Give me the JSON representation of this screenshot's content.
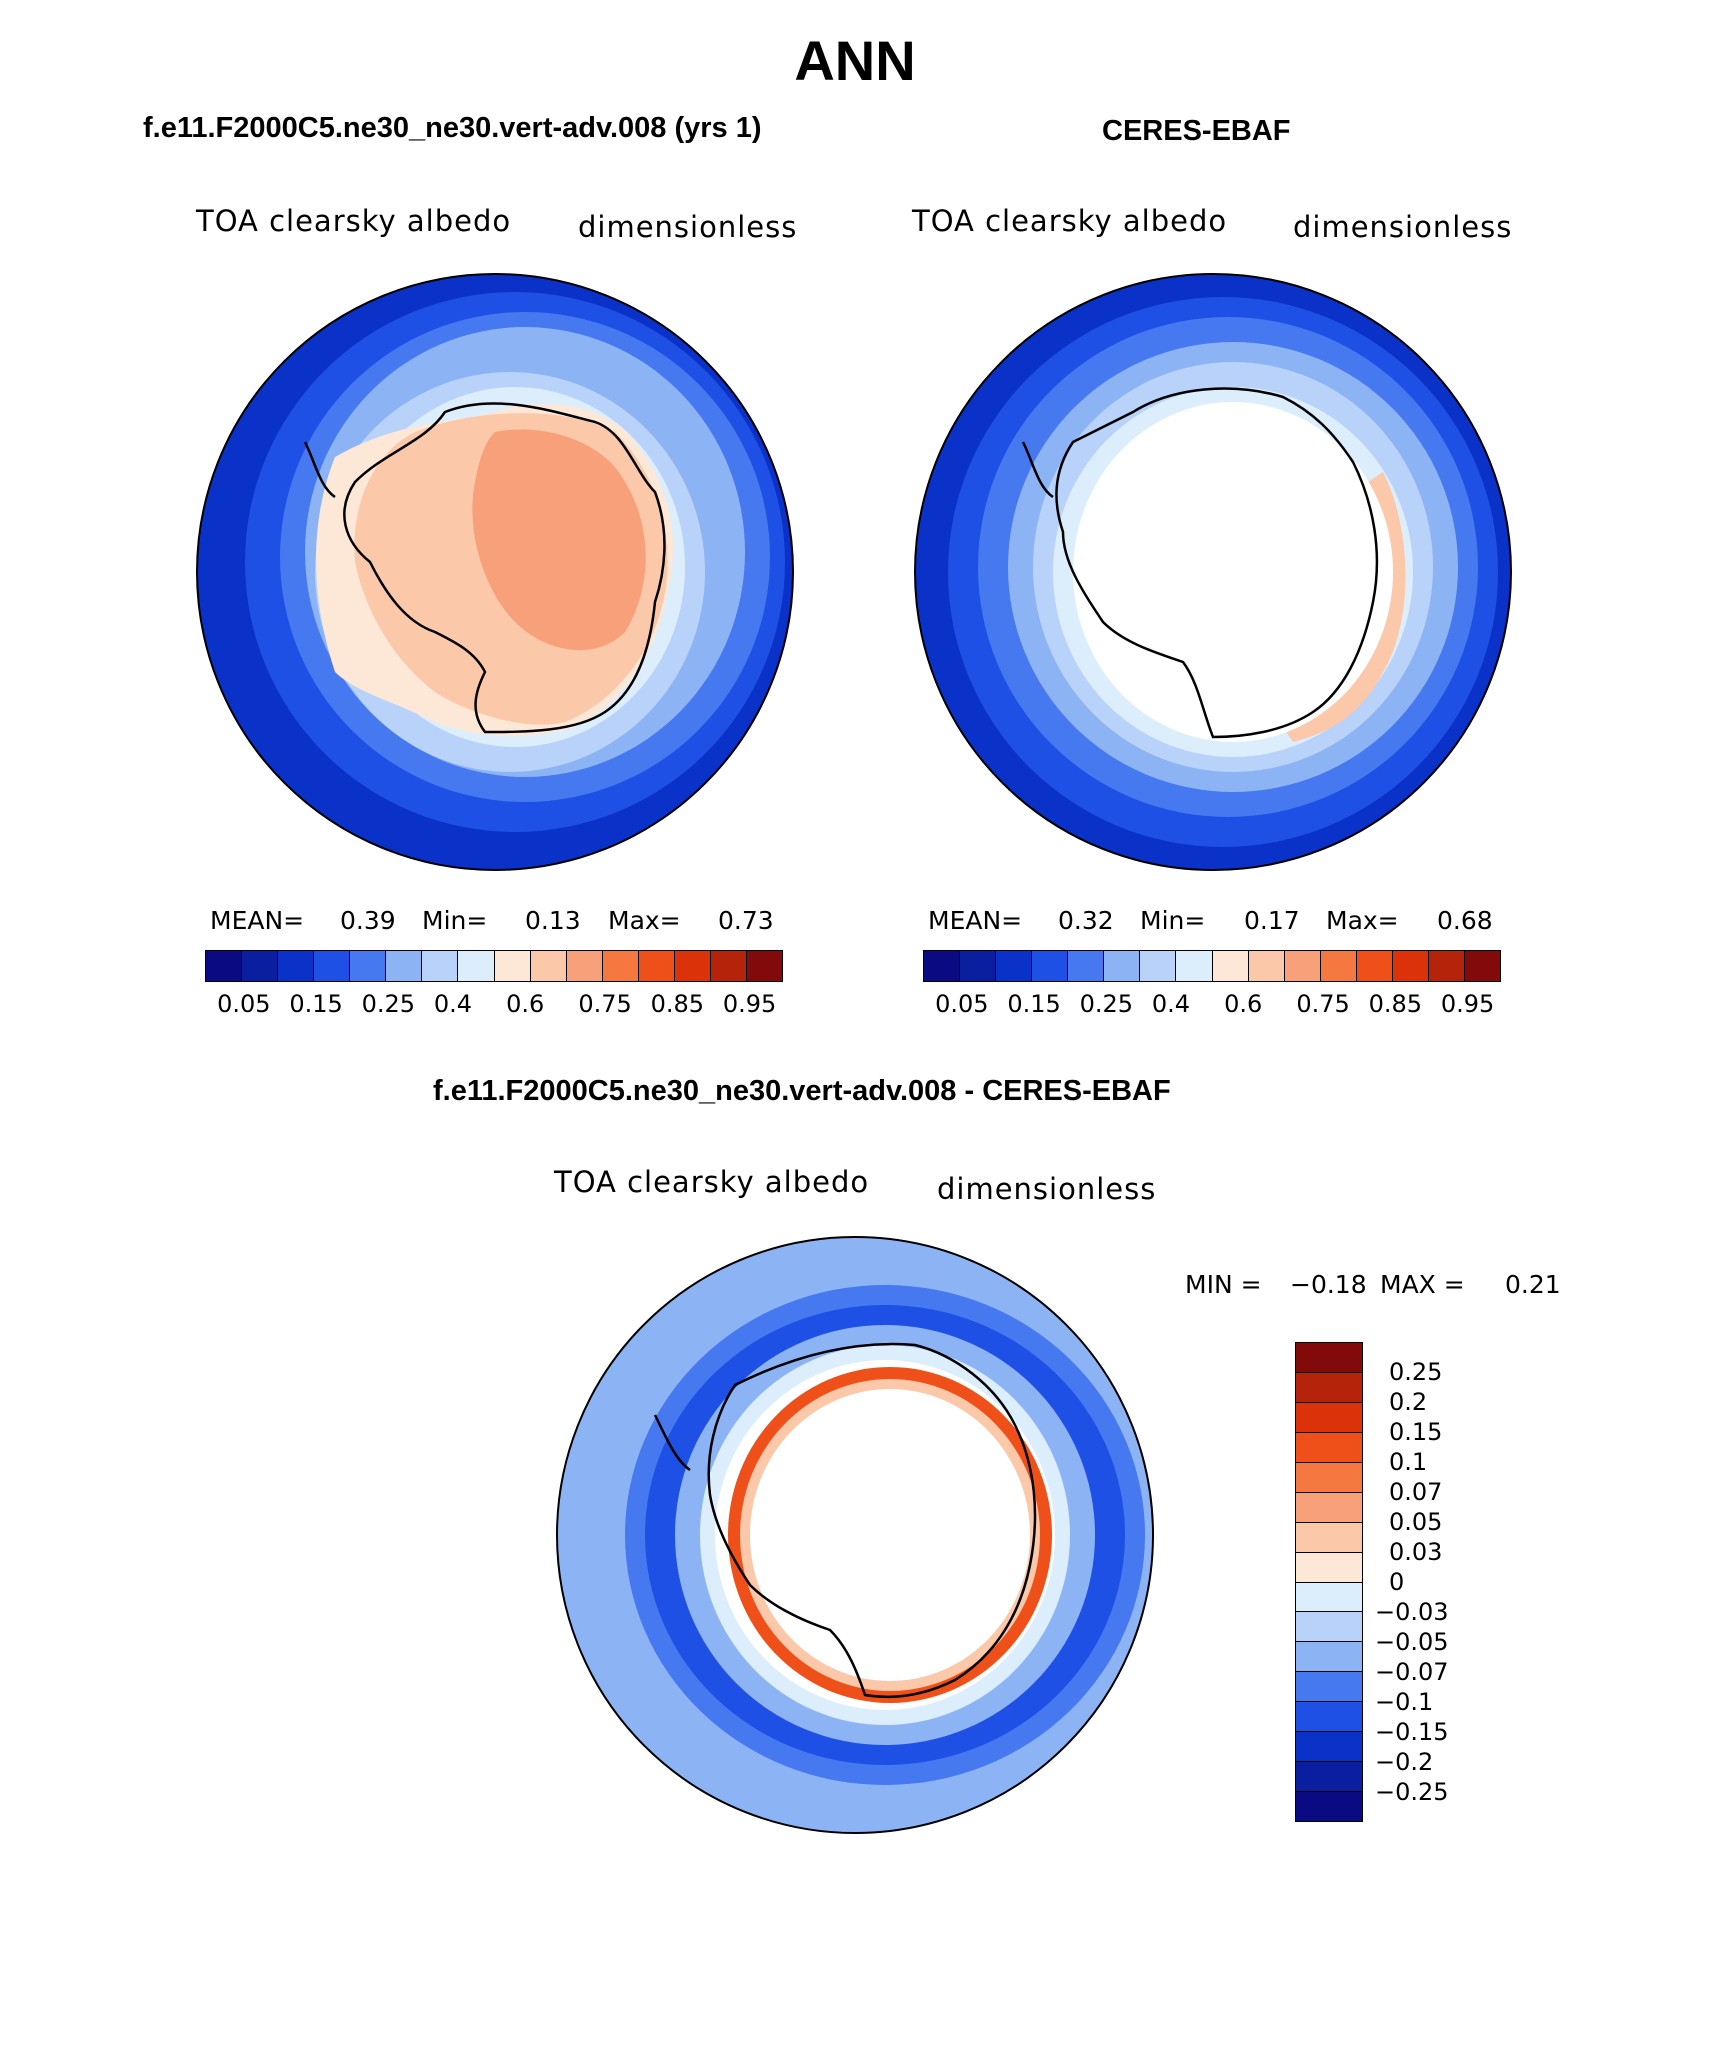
{
  "title": "ANN",
  "panels": {
    "model": {
      "title": "f.e11.F2000C5.ne30_ne30.vert-adv.008 (yrs 1)",
      "variable": "TOA clearsky albedo",
      "units": "dimensionless",
      "mean_label": "MEAN=",
      "mean": "0.39",
      "min_label": "Min=",
      "min": "0.13",
      "max_label": "Max=",
      "max": "0.73"
    },
    "obs": {
      "title": "CERES-EBAF",
      "variable": "TOA clearsky albedo",
      "units": "dimensionless",
      "mean_label": "MEAN=",
      "mean": "0.32",
      "min_label": "Min=",
      "min": "0.17",
      "max_label": "Max=",
      "max": "0.68"
    },
    "diff": {
      "title": "f.e11.F2000C5.ne30_ne30.vert-adv.008 - CERES-EBAF",
      "variable": "TOA clearsky albedo",
      "units": "dimensionless",
      "min_label": "MIN =",
      "min": "−0.18",
      "max_label": "MAX =",
      "max": "0.21"
    }
  },
  "colorbar": {
    "colors": [
      "#0a0a82",
      "#0a1ea0",
      "#0a32c8",
      "#1e50e6",
      "#4678f0",
      "#8cb4f5",
      "#b9d2fa",
      "#dceefc",
      "#fde8d8",
      "#fbc8aa",
      "#f7a07a",
      "#f47840",
      "#ef5019",
      "#dc320a",
      "#b4230a",
      "#820a0a"
    ],
    "tick_labels": [
      "0.05",
      "0.15",
      "0.25",
      "0.4",
      "0.6",
      "0.75",
      "0.85",
      "0.95"
    ]
  },
  "diff_colorbar": {
    "colors": [
      "#820a0a",
      "#b4230a",
      "#dc320a",
      "#ef5019",
      "#f47840",
      "#f7a07a",
      "#fbc8aa",
      "#fde8d8",
      "#dceefc",
      "#b9d2fa",
      "#8cb4f5",
      "#4678f0",
      "#1e50e6",
      "#0a32c8",
      "#0a1ea0",
      "#0a0a82"
    ],
    "tick_labels": [
      "0.25",
      "0.2",
      "0.15",
      "0.1",
      "0.07",
      "0.05",
      "0.03",
      "0",
      "−0.03",
      "−0.05",
      "−0.07",
      "−0.1",
      "−0.15",
      "−0.2",
      "−0.25"
    ]
  }
}
